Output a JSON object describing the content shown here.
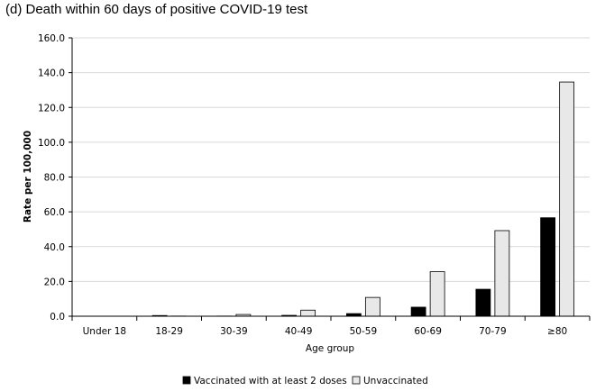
{
  "chart_data": {
    "type": "bar",
    "title": "(d) Death within 60 days of positive COVID-19 test",
    "xlabel": "Age group",
    "ylabel": "Rate per 100,000",
    "categories": [
      "Under 18",
      "18-29",
      "30-39",
      "40-49",
      "50-59",
      "60-69",
      "70-79",
      "≥80"
    ],
    "series": [
      {
        "name": "Vaccinated with at least 2 doses",
        "color": "#000000",
        "values": [
          0.0,
          0.4,
          0.1,
          0.5,
          1.5,
          5.2,
          15.5,
          56.6
        ]
      },
      {
        "name": "Unvaccinated",
        "color": "#e8e8e8",
        "values": [
          0.0,
          0.1,
          1.0,
          3.5,
          10.8,
          25.6,
          49.2,
          134.6
        ]
      }
    ],
    "ylim": [
      0,
      160
    ],
    "yticks": [
      "0.0",
      "20.0",
      "40.0",
      "60.0",
      "80.0",
      "100.0",
      "120.0",
      "140.0",
      "160.0"
    ],
    "grid": true,
    "legend_position": "bottom-center"
  }
}
